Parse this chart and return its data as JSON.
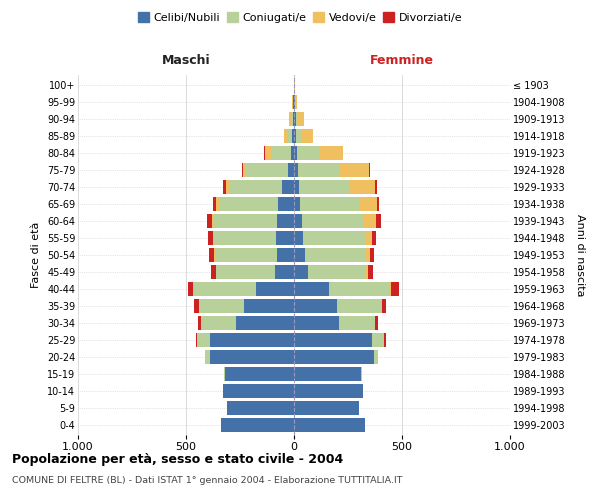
{
  "age_groups": [
    "0-4",
    "5-9",
    "10-14",
    "15-19",
    "20-24",
    "25-29",
    "30-34",
    "35-39",
    "40-44",
    "45-49",
    "50-54",
    "55-59",
    "60-64",
    "65-69",
    "70-74",
    "75-79",
    "80-84",
    "85-89",
    "90-94",
    "95-99",
    "100+"
  ],
  "birth_years": [
    "1999-2003",
    "1994-1998",
    "1989-1993",
    "1984-1988",
    "1979-1983",
    "1974-1978",
    "1969-1973",
    "1964-1968",
    "1959-1963",
    "1954-1958",
    "1949-1953",
    "1944-1948",
    "1939-1943",
    "1934-1938",
    "1929-1933",
    "1924-1928",
    "1919-1923",
    "1914-1918",
    "1909-1913",
    "1904-1908",
    "≤ 1903"
  ],
  "colors": {
    "celibi": "#4472a8",
    "coniugati": "#b8d09a",
    "vedovi": "#f0c060",
    "divorziati": "#cc2222"
  },
  "maschi": {
    "celibi": [
      340,
      310,
      330,
      320,
      390,
      390,
      270,
      230,
      175,
      90,
      80,
      85,
      80,
      75,
      55,
      30,
      15,
      8,
      5,
      3,
      2
    ],
    "coniugati": [
      0,
      0,
      0,
      5,
      20,
      60,
      160,
      210,
      290,
      270,
      285,
      285,
      290,
      270,
      240,
      190,
      90,
      20,
      8,
      2,
      0
    ],
    "vedovi": [
      0,
      0,
      0,
      0,
      0,
      0,
      1,
      2,
      3,
      3,
      5,
      5,
      10,
      15,
      20,
      15,
      30,
      20,
      8,
      2,
      0
    ],
    "divorziati": [
      0,
      0,
      0,
      0,
      2,
      5,
      15,
      22,
      25,
      22,
      25,
      22,
      22,
      15,
      15,
      8,
      2,
      0,
      0,
      0,
      0
    ]
  },
  "femmine": {
    "celibi": [
      330,
      300,
      320,
      310,
      370,
      360,
      210,
      200,
      160,
      65,
      50,
      40,
      35,
      30,
      25,
      20,
      15,
      10,
      10,
      5,
      2
    ],
    "coniugati": [
      0,
      0,
      0,
      3,
      18,
      55,
      165,
      205,
      285,
      270,
      285,
      290,
      290,
      275,
      235,
      195,
      100,
      25,
      8,
      2,
      0
    ],
    "vedovi": [
      0,
      0,
      0,
      0,
      0,
      2,
      2,
      3,
      5,
      8,
      15,
      30,
      55,
      80,
      115,
      130,
      110,
      55,
      30,
      8,
      2
    ],
    "divorziati": [
      0,
      0,
      0,
      0,
      2,
      8,
      10,
      20,
      35,
      22,
      22,
      20,
      22,
      10,
      10,
      5,
      2,
      0,
      0,
      0,
      0
    ]
  },
  "title": "Popolazione per età, sesso e stato civile - 2004",
  "subtitle": "COMUNE DI FELTRE (BL) - Dati ISTAT 1° gennaio 2004 - Elaborazione TUTTITALIA.IT",
  "xlabel_left": "Maschi",
  "xlabel_right": "Femmine",
  "ylabel_left": "Fasce di età",
  "ylabel_right": "Anni di nascita",
  "xlim": 1000,
  "xticklabels": [
    "1.000",
    "500",
    "0",
    "500",
    "1.000"
  ],
  "legend_labels": [
    "Celibi/Nubili",
    "Coniugati/e",
    "Vedovi/e",
    "Divorziati/e"
  ],
  "bg_color": "#ffffff",
  "grid_color": "#cccccc",
  "bar_height": 0.82
}
